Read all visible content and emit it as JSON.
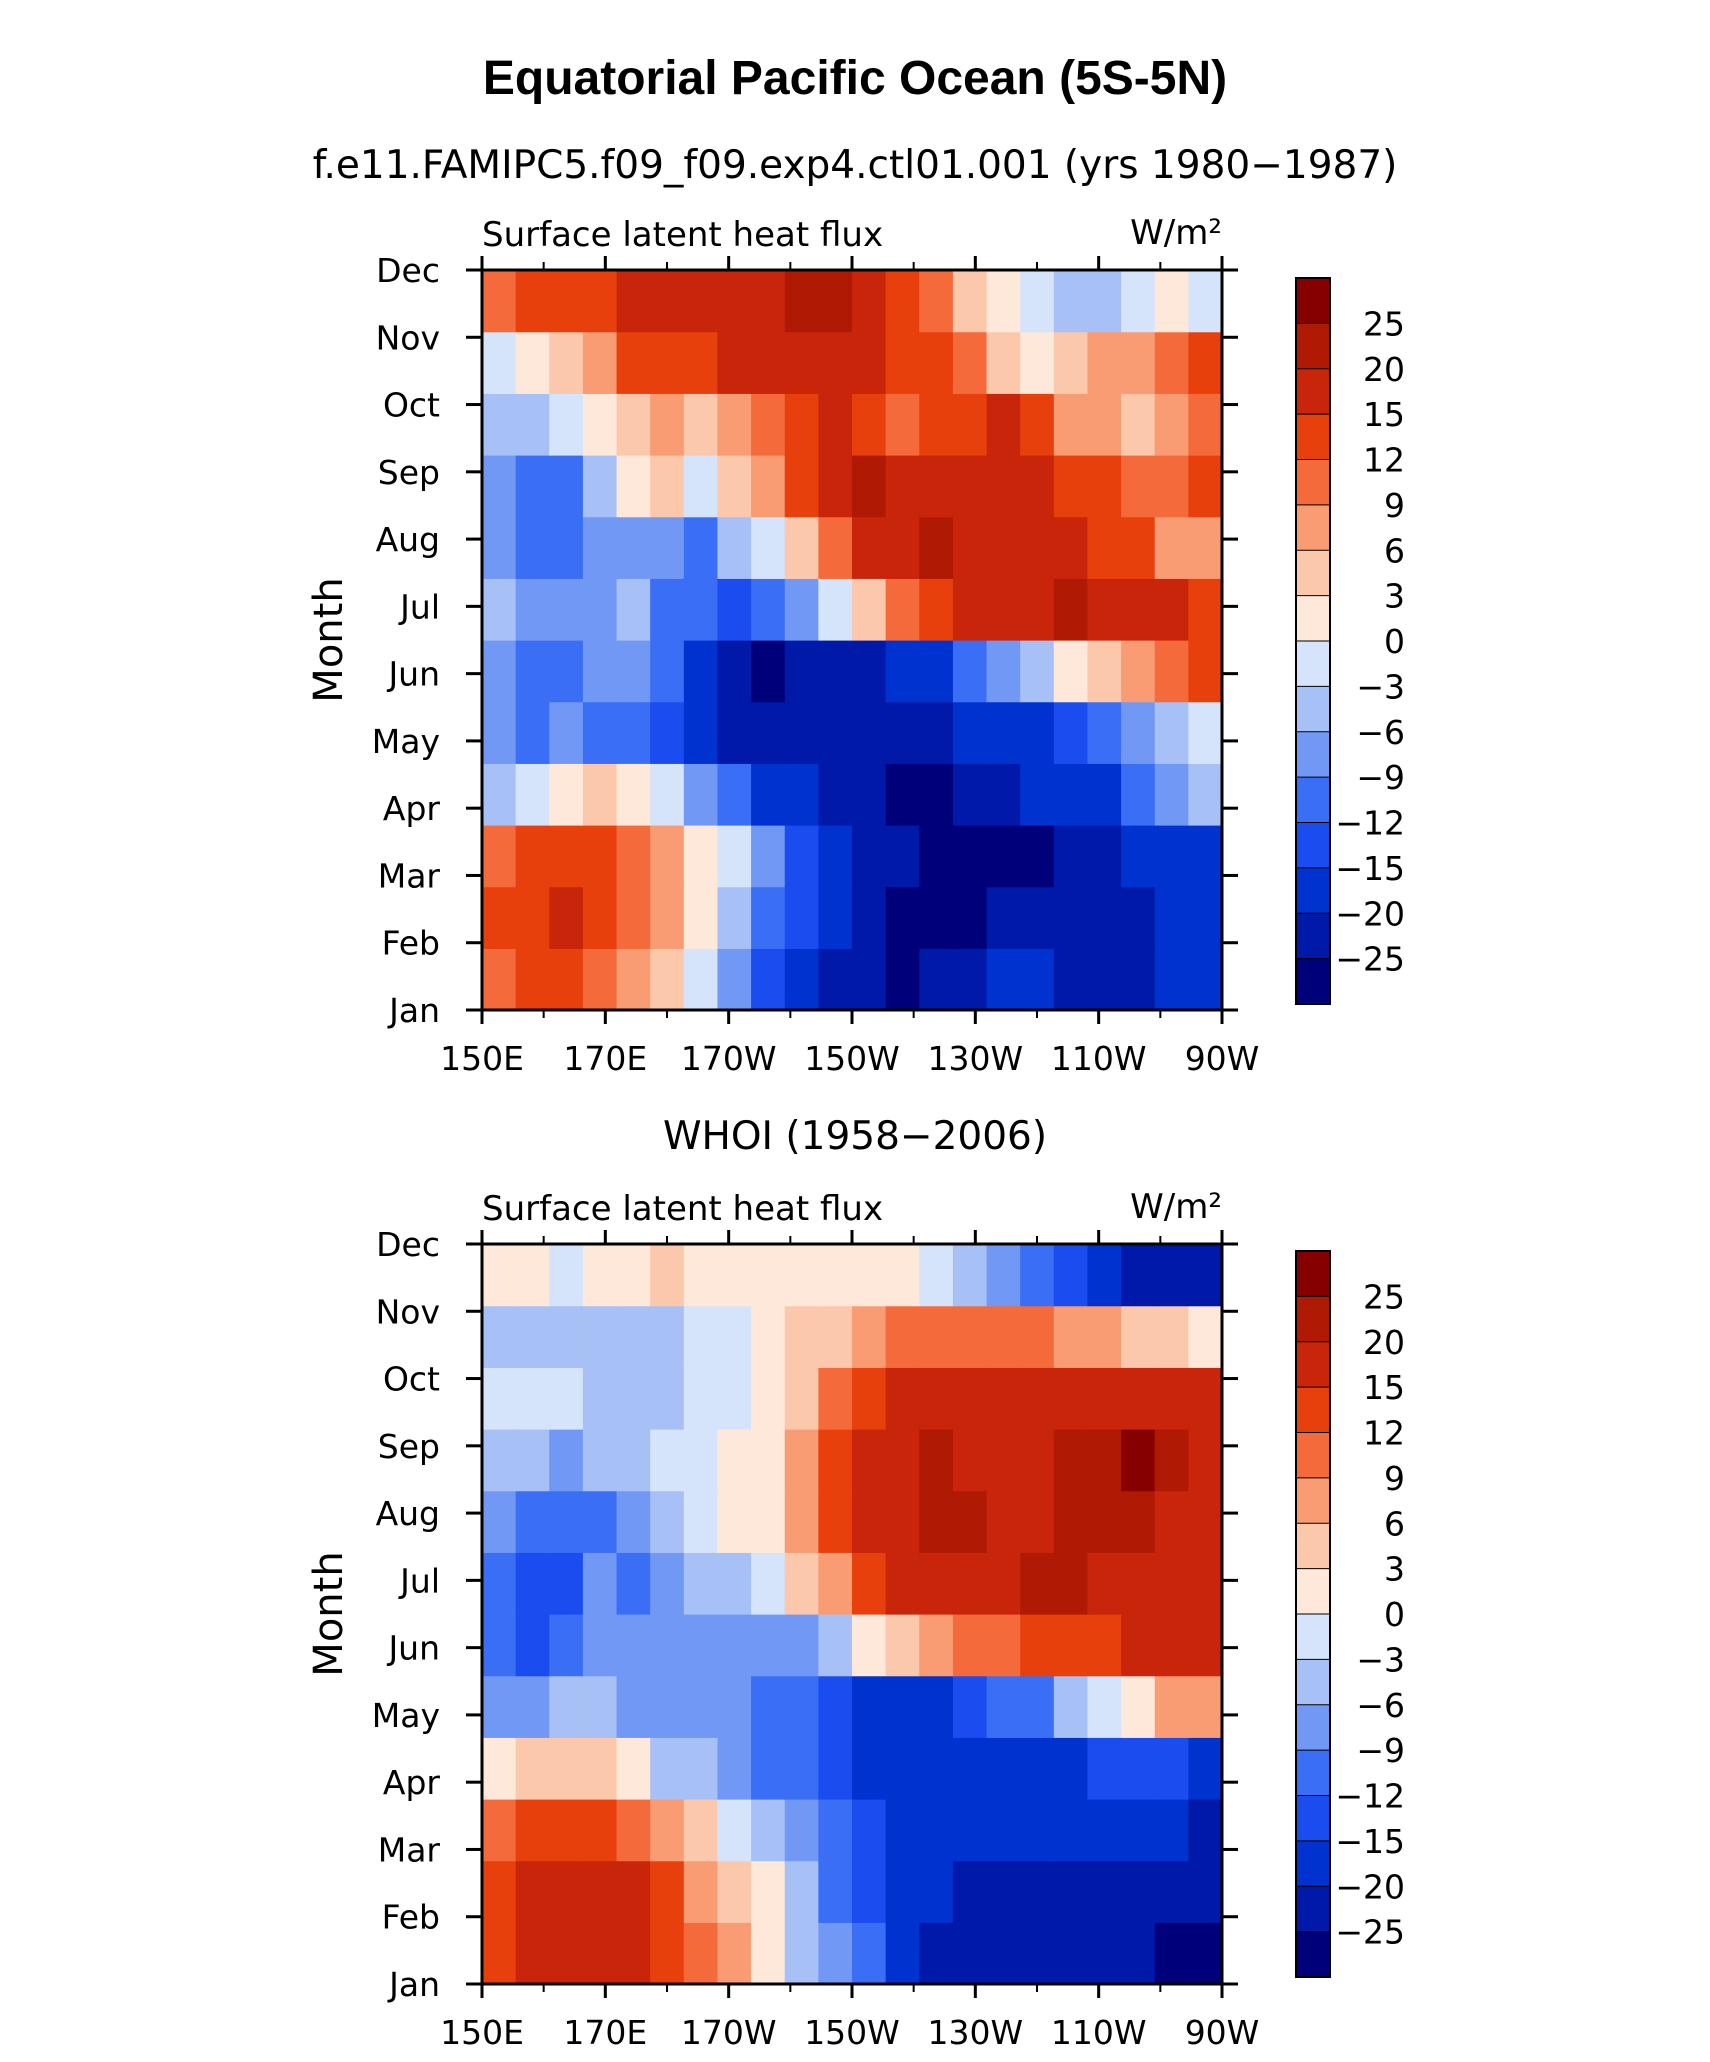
{
  "title": "Equatorial Pacific Ocean (5S-5N)",
  "chart_data": [
    {
      "type": "heatmap",
      "subtitle": "f.e11.FAMIPC5.f09_f09.exp4.ctl01.001 (yrs 1980−1987)",
      "variable": "Surface latent heat flux",
      "units": "W/m²",
      "xlabel": "",
      "ylabel": "Month",
      "x_ticks": [
        "150E",
        "170E",
        "170W",
        "150W",
        "130W",
        "110W",
        "90W"
      ],
      "y_ticks": [
        "Jan",
        "Feb",
        "Mar",
        "Apr",
        "May",
        "Jun",
        "Jul",
        "Aug",
        "Sep",
        "Oct",
        "Nov",
        "Dec"
      ],
      "xlim": [
        150,
        270
      ],
      "colorbar_levels": [
        "25",
        "20",
        "15",
        "12",
        "9",
        "6",
        "3",
        "0",
        "−3",
        "−6",
        "−9",
        "−12",
        "−15",
        "−20",
        "−25"
      ],
      "color_bins": [
        "#00007a",
        "#0019a8",
        "#0032d0",
        "#1b4cf0",
        "#3a6ef5",
        "#7298f5",
        "#a7c0f5",
        "#d5e4fb",
        "#fde8da",
        "#fcc8ac",
        "#f99b73",
        "#f56a3a",
        "#e8400d",
        "#c8250b",
        "#b01a05",
        "#870000"
      ],
      "values": [
        [
          9,
          12,
          13,
          10,
          6,
          3,
          -3,
          -9,
          -14,
          -18,
          -22,
          -24,
          -26,
          -25,
          -22,
          -18,
          -20,
          -22,
          -23,
          -21,
          -18,
          -17
        ],
        [
          12,
          14,
          15,
          12,
          9,
          6,
          2,
          -4,
          -10,
          -15,
          -20,
          -23,
          -26,
          -27,
          -27,
          -25,
          -23,
          -24,
          -24,
          -22,
          -20,
          -18
        ],
        [
          10,
          13,
          14,
          12,
          10,
          6,
          2,
          -2,
          -8,
          -14,
          -18,
          -22,
          -25,
          -28,
          -29,
          -28,
          -26,
          -24,
          -22,
          -20,
          -18,
          -16
        ],
        [
          -6,
          -3,
          2,
          5,
          1,
          -3,
          -8,
          -12,
          -16,
          -20,
          -23,
          -25,
          -27,
          -27,
          -25,
          -22,
          -20,
          -18,
          -16,
          -12,
          -8,
          -4
        ],
        [
          -8,
          -10,
          -9,
          -10,
          -12,
          -14,
          -18,
          -22,
          -24,
          -25,
          -25,
          -24,
          -23,
          -22,
          -20,
          -18,
          -16,
          -14,
          -11,
          -8,
          -4,
          -2
        ],
        [
          -9,
          -12,
          -10,
          -9,
          -8,
          -10,
          -16,
          -22,
          -26,
          -25,
          -24,
          -22,
          -20,
          -16,
          -12,
          -8,
          -4,
          0,
          4,
          8,
          11,
          14
        ],
        [
          -5,
          -8,
          -7,
          -8,
          -6,
          -10,
          -12,
          -15,
          -12,
          -8,
          -3,
          3,
          9,
          13,
          16,
          18,
          19,
          20,
          19,
          17,
          15,
          13
        ],
        [
          -7,
          -11,
          -10,
          -8,
          -8,
          -9,
          -10,
          -6,
          -2,
          3,
          10,
          15,
          19,
          20,
          19,
          17,
          16,
          15,
          14,
          12,
          8,
          6
        ],
        [
          -9,
          -12,
          -10,
          -6,
          2,
          3,
          -2,
          3,
          8,
          13,
          17,
          20,
          19,
          17,
          16,
          15,
          15,
          14,
          13,
          11,
          9,
          12
        ],
        [
          -5,
          -5,
          -2,
          0,
          3,
          6,
          3,
          6,
          10,
          14,
          15,
          13,
          11,
          12,
          14,
          15,
          12,
          8,
          6,
          5,
          6,
          10
        ],
        [
          -1,
          1,
          4,
          8,
          12,
          14,
          14,
          15,
          16,
          17,
          17,
          16,
          14,
          12,
          9,
          3,
          0,
          3,
          6,
          8,
          10,
          12
        ],
        [
          11,
          13,
          12,
          14,
          15,
          16,
          17,
          18,
          19,
          20,
          21,
          18,
          14,
          10,
          5,
          0,
          -3,
          -4,
          -5,
          -2,
          0,
          -1
        ]
      ]
    },
    {
      "type": "heatmap",
      "subtitle": "WHOI (1958−2006)",
      "variable": "Surface latent heat flux",
      "units": "W/m²",
      "xlabel": "",
      "ylabel": "Month",
      "x_ticks": [
        "150E",
        "170E",
        "170W",
        "150W",
        "130W",
        "110W",
        "90W"
      ],
      "y_ticks": [
        "Jan",
        "Feb",
        "Mar",
        "Apr",
        "May",
        "Jun",
        "Jul",
        "Aug",
        "Sep",
        "Oct",
        "Nov",
        "Dec"
      ],
      "xlim": [
        150,
        270
      ],
      "colorbar_levels": [
        "25",
        "20",
        "15",
        "12",
        "9",
        "6",
        "3",
        "0",
        "−3",
        "−6",
        "−9",
        "−12",
        "−15",
        "−20",
        "−25"
      ],
      "color_bins": [
        "#00007a",
        "#0019a8",
        "#0032d0",
        "#1b4cf0",
        "#3a6ef5",
        "#7298f5",
        "#a7c0f5",
        "#d5e4fb",
        "#fde8da",
        "#fcc8ac",
        "#f99b73",
        "#f56a3a",
        "#e8400d",
        "#c8250b",
        "#b01a05",
        "#870000"
      ],
      "values": [
        [
          12,
          15,
          16,
          17,
          16,
          13,
          9,
          6,
          2,
          -4,
          -8,
          -12,
          -18,
          -22,
          -22,
          -22,
          -21,
          -22,
          -24,
          -25,
          -27,
          -28
        ],
        [
          13,
          16,
          18,
          18,
          16,
          12,
          8,
          4,
          0,
          -6,
          -10,
          -14,
          -18,
          -20,
          -22,
          -24,
          -24,
          -23,
          -23,
          -24,
          -25,
          -24
        ],
        [
          10,
          13,
          14,
          13,
          10,
          7,
          3,
          -1,
          -5,
          -9,
          -12,
          -15,
          -18,
          -19,
          -20,
          -20,
          -20,
          -19,
          -20,
          -19,
          -20,
          -22
        ],
        [
          1,
          4,
          5,
          3,
          0,
          -4,
          -6,
          -8,
          -10,
          -12,
          -14,
          -16,
          -18,
          -18,
          -19,
          -20,
          -18,
          -16,
          -15,
          -14,
          -15,
          -17
        ],
        [
          -8,
          -8,
          -6,
          -6,
          -7,
          -8,
          -9,
          -9,
          -10,
          -12,
          -15,
          -17,
          -18,
          -16,
          -14,
          -12,
          -10,
          -6,
          -2,
          2,
          6,
          8
        ],
        [
          -12,
          -13,
          -12,
          -9,
          -9,
          -9,
          -8,
          -9,
          -9,
          -7,
          -4,
          0,
          4,
          7,
          9,
          11,
          12,
          12,
          14,
          15,
          15,
          16
        ],
        [
          -12,
          -14,
          -13,
          -9,
          -10,
          -8,
          -6,
          -4,
          -1,
          3,
          8,
          12,
          15,
          16,
          18,
          19,
          20,
          20,
          19,
          18,
          17,
          16
        ],
        [
          -7,
          -10,
          -12,
          -10,
          -7,
          -5,
          -3,
          0,
          2,
          6,
          12,
          16,
          18,
          20,
          20,
          17,
          18,
          20,
          21,
          20,
          18,
          16
        ],
        [
          -5,
          -6,
          -7,
          -6,
          -4,
          -3,
          -1,
          0,
          2,
          6,
          13,
          17,
          19,
          20,
          19,
          17,
          18,
          20,
          22,
          25,
          24,
          18
        ],
        [
          -3,
          -1,
          -3,
          -4,
          -5,
          -4,
          -2,
          -1,
          1,
          4,
          10,
          14,
          16,
          18,
          18,
          16,
          15,
          16,
          16,
          17,
          16,
          15
        ],
        [
          -4,
          -5,
          -6,
          -6,
          -5,
          -4,
          -3,
          -2,
          0,
          3,
          5,
          8,
          10,
          10,
          11,
          10,
          9,
          8,
          6,
          4,
          3,
          2
        ],
        [
          0,
          1,
          -1,
          0,
          2,
          3,
          2,
          2,
          1,
          1,
          1,
          0,
          0,
          -2,
          -4,
          -7,
          -10,
          -14,
          -18,
          -22,
          -24,
          -25
        ]
      ]
    }
  ]
}
